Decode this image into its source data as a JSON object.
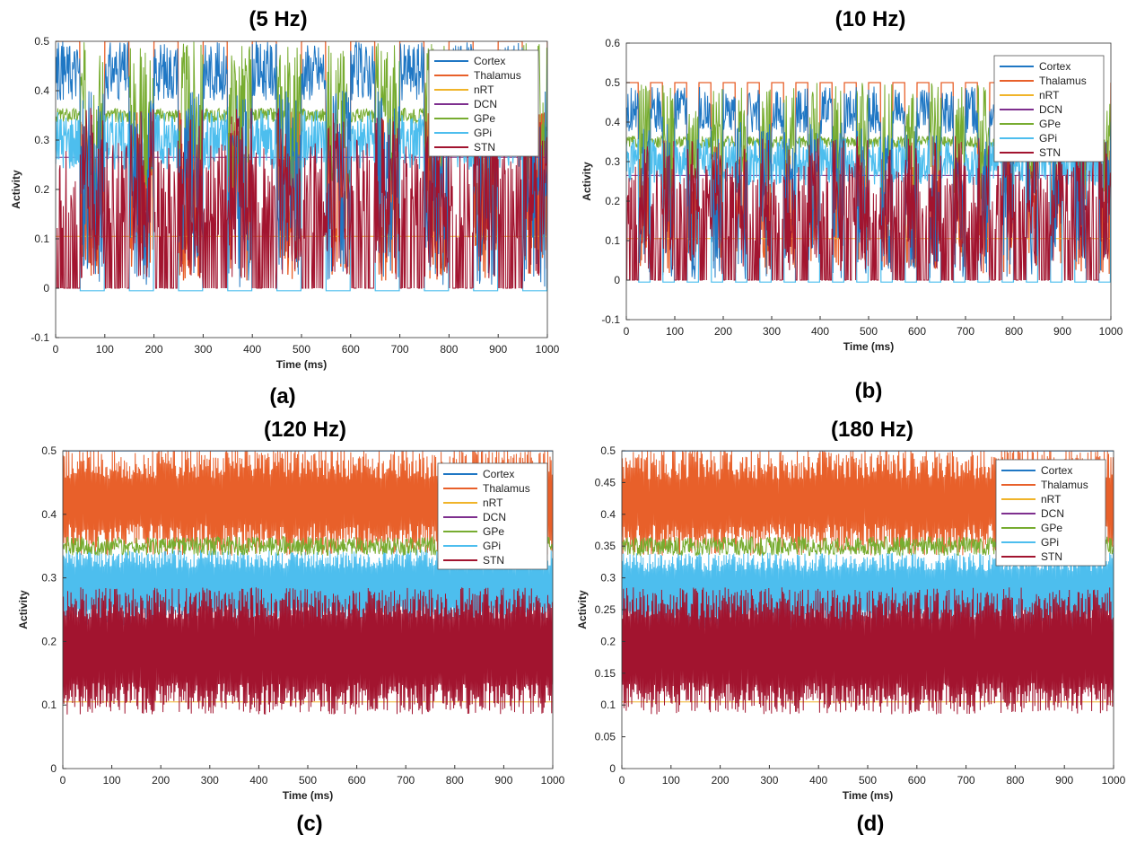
{
  "legend_series": [
    {
      "name": "Cortex",
      "color": "#1f77c4"
    },
    {
      "name": "Thalamus",
      "color": "#e8602a"
    },
    {
      "name": "nRT",
      "color": "#f0b429"
    },
    {
      "name": "DCN",
      "color": "#7e2f8e"
    },
    {
      "name": "GPe",
      "color": "#77ac30"
    },
    {
      "name": "GPi",
      "color": "#4dbeee"
    },
    {
      "name": "STN",
      "color": "#a2142f"
    }
  ],
  "chart_data": [
    {
      "type": "line",
      "title": "(5 Hz)",
      "caption": "(a)",
      "xlabel": "Time (ms)",
      "ylabel": "Activity",
      "xlim": [
        0,
        1000
      ],
      "ylim": [
        -0.1,
        0.5
      ],
      "xticks": [
        0,
        100,
        200,
        300,
        400,
        500,
        600,
        700,
        800,
        900,
        1000
      ],
      "yticks": [
        -0.1,
        0,
        0.1,
        0.2,
        0.3,
        0.4,
        0.5
      ],
      "ytick_labels": [
        "-0.1",
        "0",
        "0.1",
        "0.2",
        "0.3",
        "0.4",
        "0.5"
      ],
      "stim_period_ms": 100,
      "series_levels": {
        "Cortex": 0.44,
        "Thalamus": 0.5,
        "nRT": 0.105,
        "DCN": 0.265,
        "GPe": 0.35,
        "GPi": -0.005,
        "STN": 0.19
      }
    },
    {
      "type": "line",
      "title": "(10 Hz)",
      "caption": "(b)",
      "xlabel": "Time (ms)",
      "ylabel": "Activity",
      "xlim": [
        0,
        1000
      ],
      "ylim": [
        -0.1,
        0.6
      ],
      "xticks": [
        0,
        100,
        200,
        300,
        400,
        500,
        600,
        700,
        800,
        900,
        1000
      ],
      "yticks": [
        -0.1,
        0,
        0.1,
        0.2,
        0.3,
        0.4,
        0.5,
        0.6
      ],
      "ytick_labels": [
        "-0.1",
        "0",
        "0.1",
        "0.2",
        "0.3",
        "0.4",
        "0.5",
        "0.6"
      ],
      "stim_period_ms": 50,
      "series_levels": {
        "Cortex": 0.43,
        "Thalamus": 0.5,
        "nRT": 0.105,
        "DCN": 0.265,
        "GPe": 0.35,
        "GPi": -0.005,
        "STN": 0.19
      }
    },
    {
      "type": "line",
      "title": "(120 Hz)",
      "caption": "(c)",
      "xlabel": "Time (ms)",
      "ylabel": "Activity",
      "xlim": [
        0,
        1000
      ],
      "ylim": [
        0,
        0.5
      ],
      "xticks": [
        0,
        100,
        200,
        300,
        400,
        500,
        600,
        700,
        800,
        900,
        1000
      ],
      "yticks": [
        0,
        0.1,
        0.2,
        0.3,
        0.4,
        0.5
      ],
      "ytick_labels": [
        "0",
        "0.1",
        "0.2",
        "0.3",
        "0.4",
        "0.5"
      ],
      "series_levels": {
        "Cortex": 0.5,
        "Thalamus": 0.42,
        "nRT": 0.105,
        "DCN": 0.265,
        "GPe": 0.35,
        "GPi": 0.29,
        "STN": 0.19
      }
    },
    {
      "type": "line",
      "title": "(180 Hz)",
      "caption": "(d)",
      "xlabel": "Time (ms)",
      "ylabel": "Activity",
      "xlim": [
        0,
        1000
      ],
      "ylim": [
        0,
        0.5
      ],
      "xticks": [
        0,
        100,
        200,
        300,
        400,
        500,
        600,
        700,
        800,
        900,
        1000
      ],
      "yticks": [
        0,
        0.05,
        0.1,
        0.15,
        0.2,
        0.25,
        0.3,
        0.35,
        0.4,
        0.45,
        0.5
      ],
      "ytick_labels": [
        "0",
        "0.05",
        "0.1",
        "0.15",
        "0.2",
        "0.25",
        "0.3",
        "0.35",
        "0.4",
        "0.45",
        "0.5"
      ],
      "series_levels": {
        "Cortex": 0.5,
        "Thalamus": 0.42,
        "nRT": 0.105,
        "DCN": 0.265,
        "GPe": 0.35,
        "GPi": 0.285,
        "STN": 0.19
      }
    }
  ]
}
